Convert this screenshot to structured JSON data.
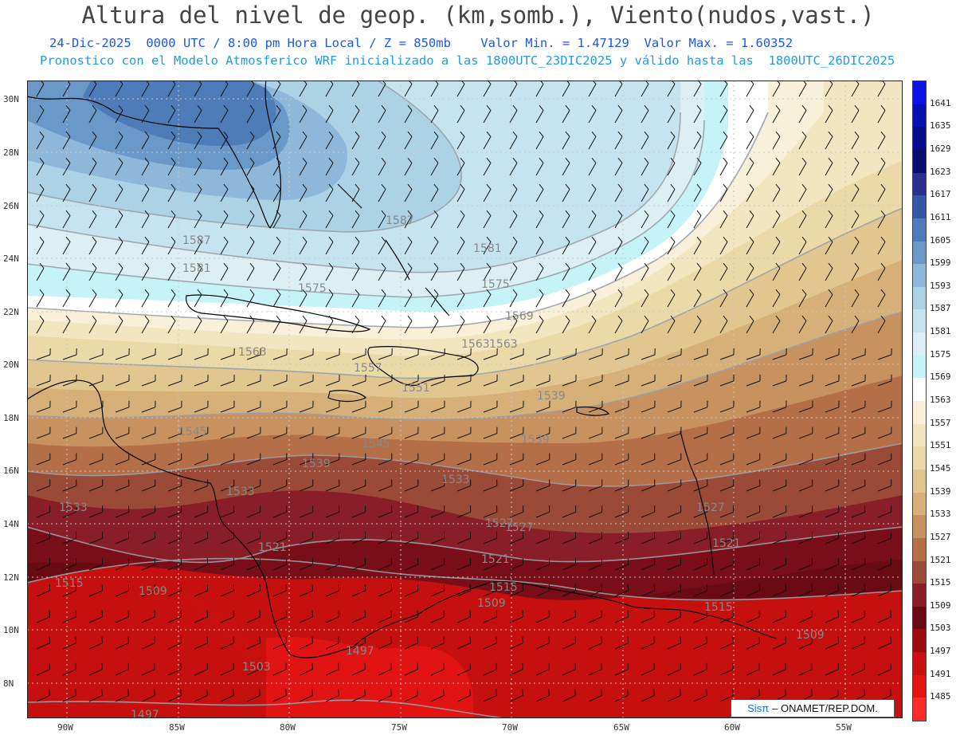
{
  "header": {
    "title": "Altura del nivel de geop. (km,somb.), Viento(nudos,vast.)",
    "line1": "24-Dic-2025  0000 UTC / 8:00 pm Hora Local / Z = 850mb    Valor Min. = 1.47129  Valor Max. = 1.60352",
    "line2": "Pronostico con el Modelo Atmosferico WRF inicializado a las 1800UTC_23DIC2025 y válido hasta las  1800UTC_26DIC2025"
  },
  "credit": {
    "logo": "Sisπ",
    "org": "– ONAMET/REP.DOM."
  },
  "axes": {
    "lat_labels": [
      "30N",
      "28N",
      "26N",
      "24N",
      "22N",
      "20N",
      "18N",
      "16N",
      "14N",
      "12N",
      "10N",
      "8N"
    ],
    "lon_labels": [
      "90W",
      "85W",
      "80W",
      "75W",
      "70W",
      "65W",
      "60W",
      "55W"
    ]
  },
  "colorbar": {
    "levels": [
      {
        "label": "1641",
        "color": "#0a12e8"
      },
      {
        "label": "1635",
        "color": "#0710b0"
      },
      {
        "label": "1629",
        "color": "#070c8c"
      },
      {
        "label": "1623",
        "color": "#0a0c6e"
      },
      {
        "label": "1617",
        "color": "#2a2e8e"
      },
      {
        "label": "1611",
        "color": "#3457a8"
      },
      {
        "label": "1605",
        "color": "#4d7cb8"
      },
      {
        "label": "1599",
        "color": "#6a98c8"
      },
      {
        "label": "1593",
        "color": "#8fb7d9"
      },
      {
        "label": "1587",
        "color": "#acd2e6"
      },
      {
        "label": "1581",
        "color": "#c6e4ef"
      },
      {
        "label": "1575",
        "color": "#dbeff5"
      },
      {
        "label": "1569",
        "color": "#c6f3f7"
      },
      {
        "label": "1563",
        "color": "#ffffff"
      },
      {
        "label": "1557",
        "color": "#f8f0d8"
      },
      {
        "label": "1551",
        "color": "#f2e6c0"
      },
      {
        "label": "1545",
        "color": "#ecd9a8"
      },
      {
        "label": "1539",
        "color": "#e2c690"
      },
      {
        "label": "1533",
        "color": "#d6b078"
      },
      {
        "label": "1527",
        "color": "#c89260"
      },
      {
        "label": "1521",
        "color": "#b46e48"
      },
      {
        "label": "1515",
        "color": "#9a4a36"
      },
      {
        "label": "1509",
        "color": "#8a1e28"
      },
      {
        "label": "1503",
        "color": "#6a0a12"
      },
      {
        "label": "1497",
        "color": "#9c0c0c"
      },
      {
        "label": "1491",
        "color": "#c81010"
      },
      {
        "label": "1485",
        "color": "#e51414"
      },
      {
        "label": "",
        "color": "#ff2a2a"
      }
    ]
  },
  "contour_labels": [
    "1587",
    "1587",
    "1581",
    "1581",
    "1575",
    "1575",
    "1569",
    "1563",
    "1563",
    "1563",
    "1557",
    "1551",
    "1545",
    "1545",
    "1539",
    "1539",
    "1539",
    "1533",
    "1533",
    "1533",
    "1527",
    "1527",
    "1527",
    "1521",
    "1521",
    "1521",
    "1515",
    "1515",
    "1515",
    "1509",
    "1509",
    "1509",
    "1503",
    "1497",
    "1497"
  ]
}
